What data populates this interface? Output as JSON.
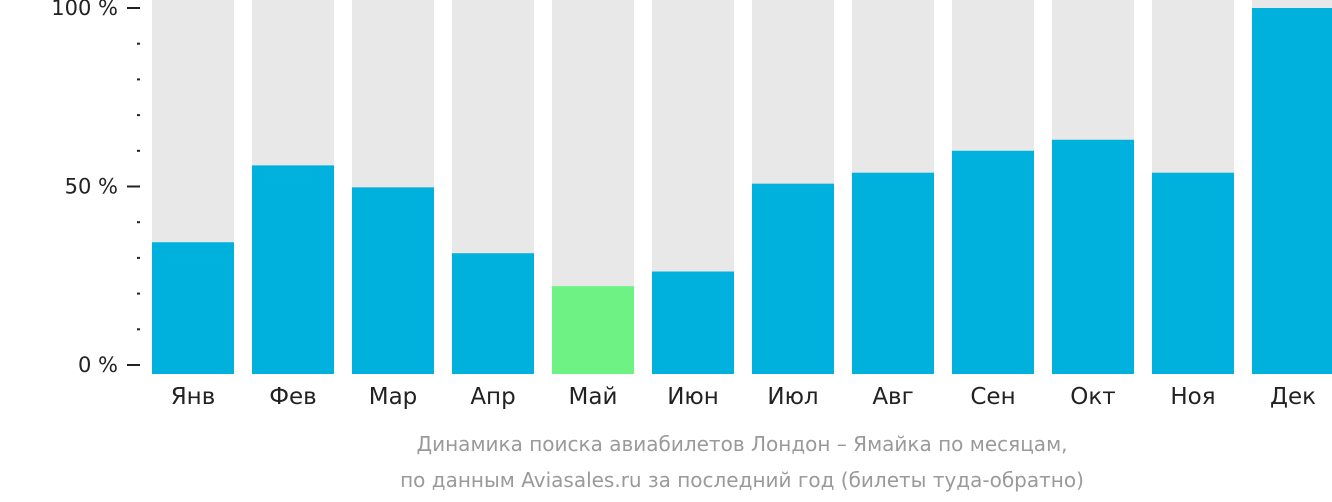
{
  "chart_data": {
    "type": "bar",
    "title": "",
    "xlabel": "",
    "ylabel": "",
    "ylim": [
      0,
      100
    ],
    "grid": false,
    "categories": [
      "Янв",
      "Фев",
      "Мар",
      "Апр",
      "Май",
      "Июн",
      "Июл",
      "Авг",
      "Сен",
      "Окт",
      "Ноя",
      "Дек"
    ],
    "values": [
      36,
      57,
      51,
      33,
      24,
      28,
      52,
      55,
      61,
      64,
      55,
      100
    ],
    "highlight_index": 4,
    "y_ticks": [
      {
        "value": 0,
        "label": "0 %"
      },
      {
        "value": 50,
        "label": "50 %"
      },
      {
        "value": 100,
        "label": "100 %"
      }
    ],
    "y_minor_tick_step": 10,
    "colors": {
      "bar": "#00b0dd",
      "highlight": "#6ef283",
      "background_bar": "#e8e8e8",
      "axis": "#222222",
      "caption": "#9a9a9a"
    }
  },
  "caption": {
    "line1": "Динамика поиска авиабилетов Лондон – Ямайка по месяцам,",
    "line2": "по данным Aviasales.ru за последний год (билеты туда-обратно)"
  }
}
